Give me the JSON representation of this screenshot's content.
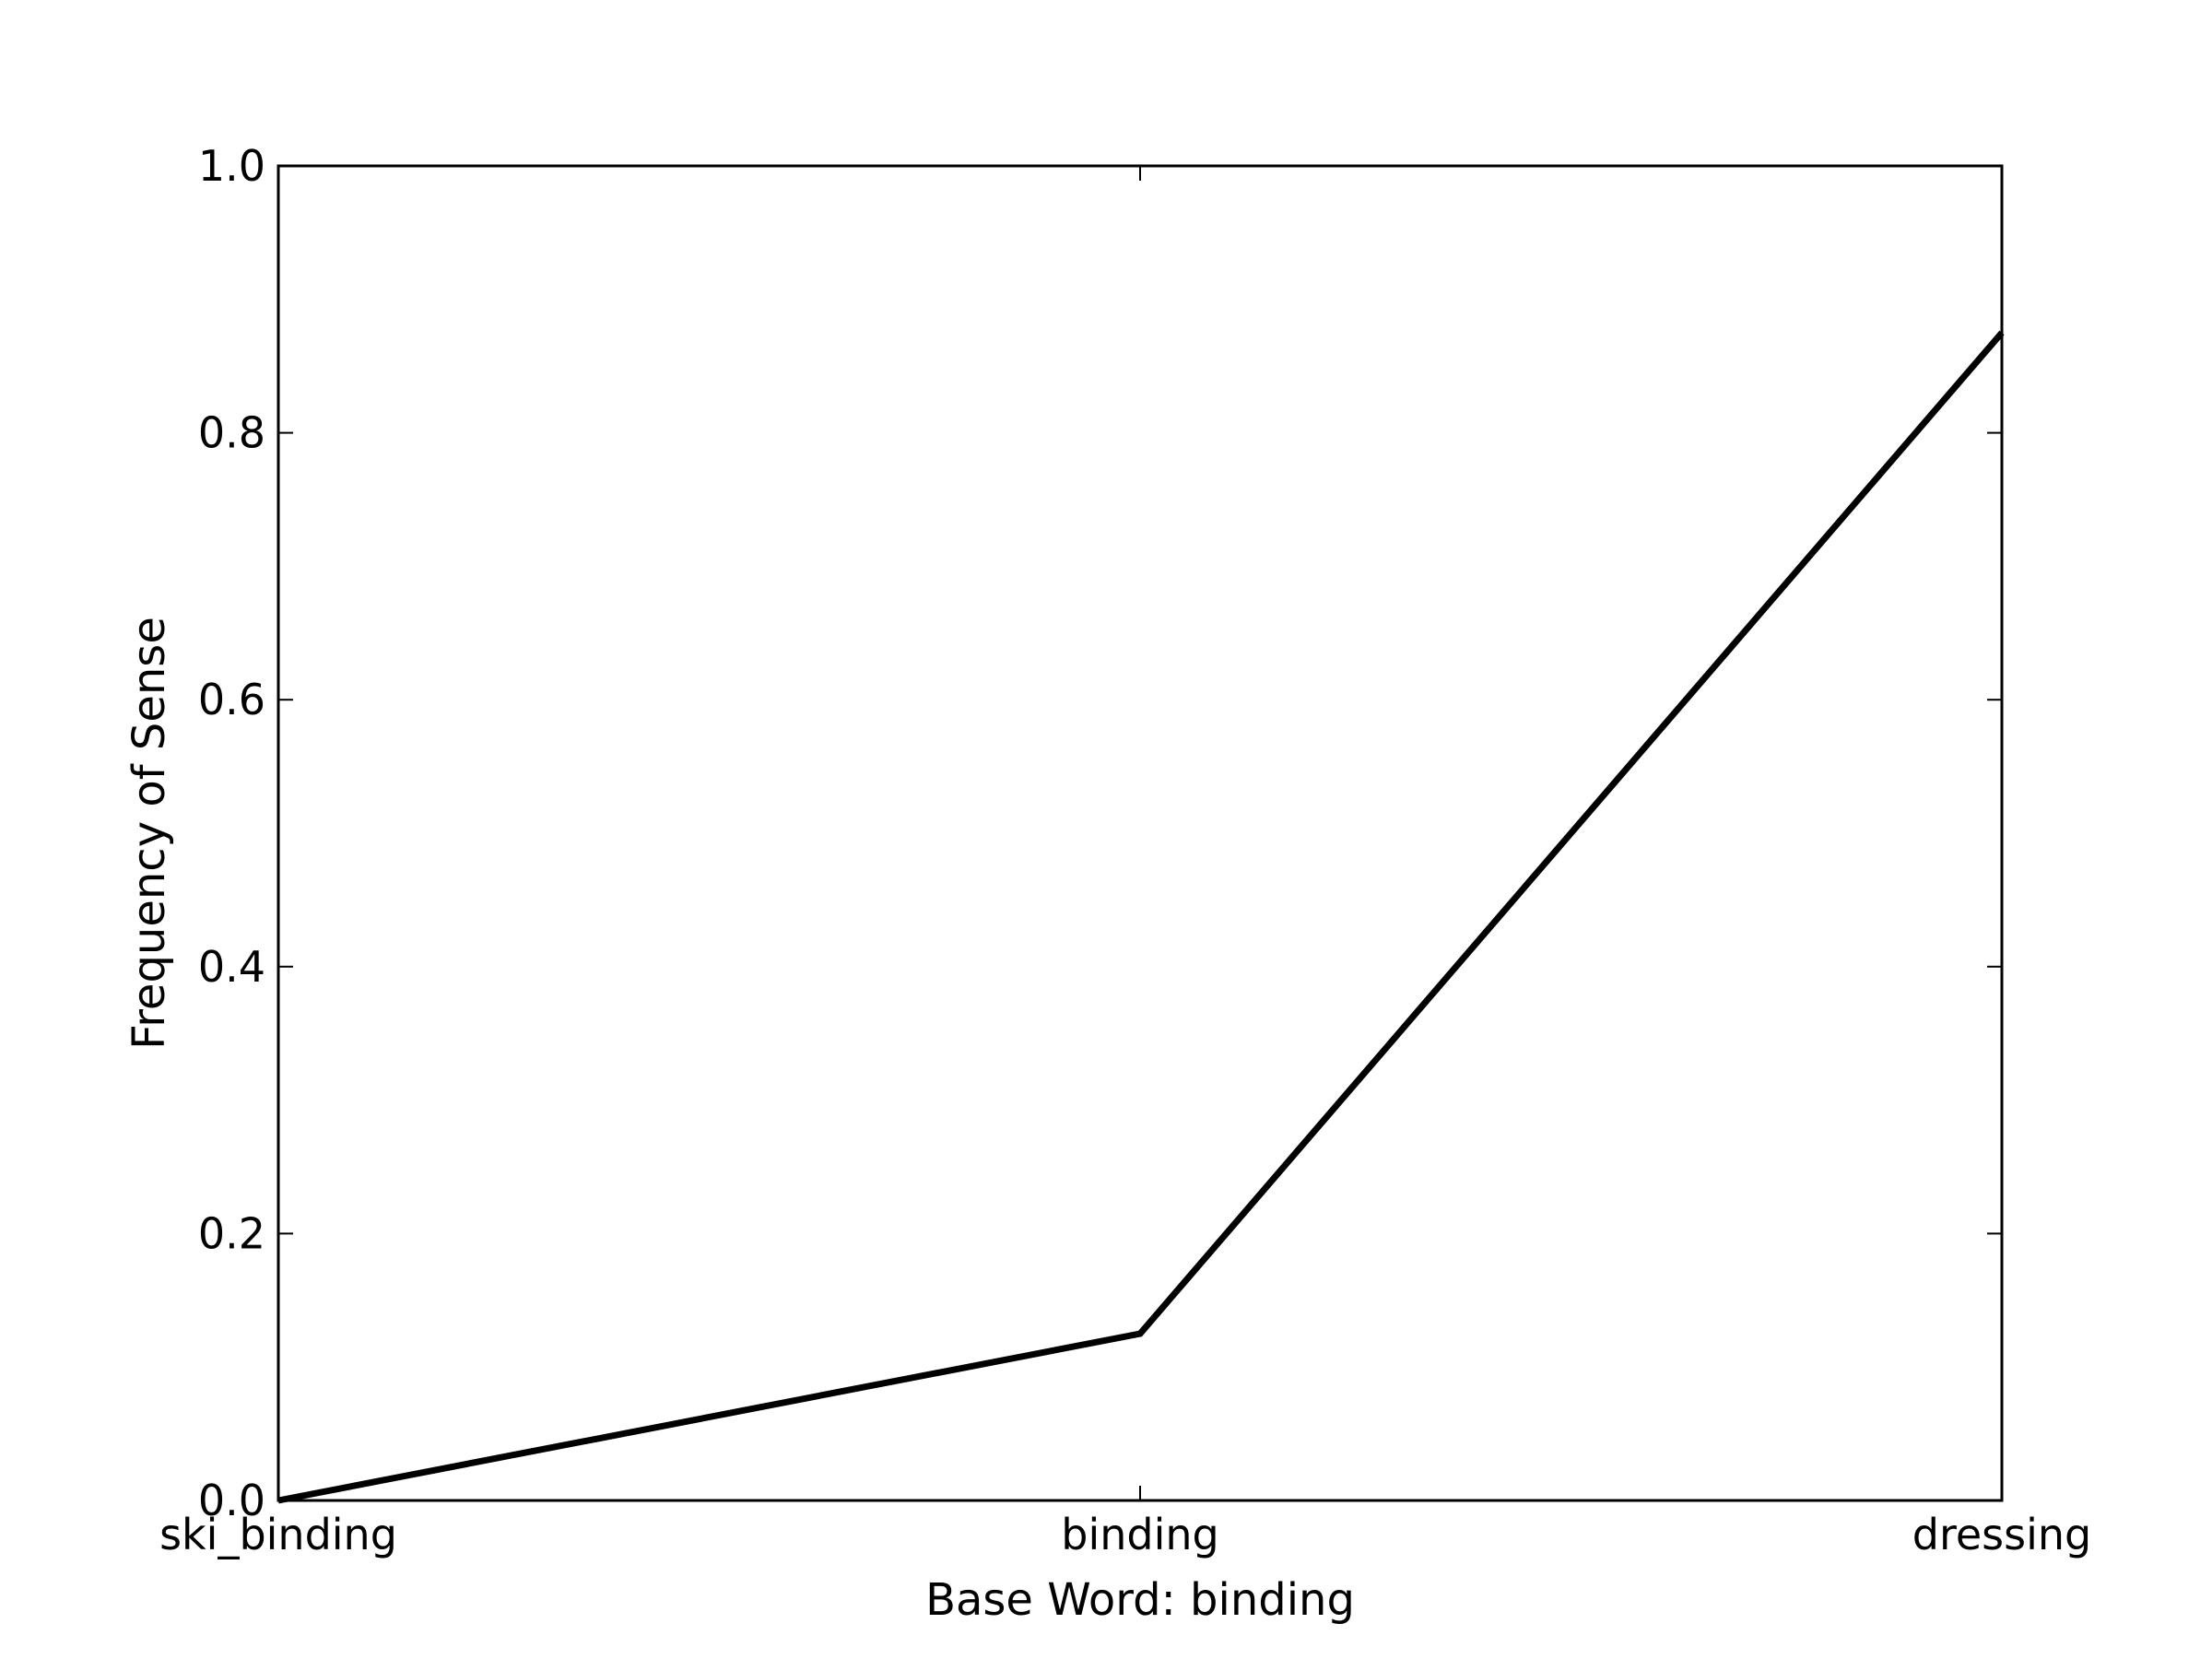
{
  "chart_data": {
    "type": "line",
    "categories": [
      "ski_binding",
      "binding",
      "dressing"
    ],
    "series": [
      {
        "values": [
          0.0,
          0.125,
          0.875
        ]
      }
    ],
    "xlabel": "Base Word: binding",
    "ylabel": "Frequency of Sense",
    "ylim": [
      0.0,
      1.0
    ],
    "yticks": [
      "0.0",
      "0.2",
      "0.4",
      "0.6",
      "0.8",
      "1.0"
    ],
    "grid": false,
    "line_color": "#000000"
  }
}
